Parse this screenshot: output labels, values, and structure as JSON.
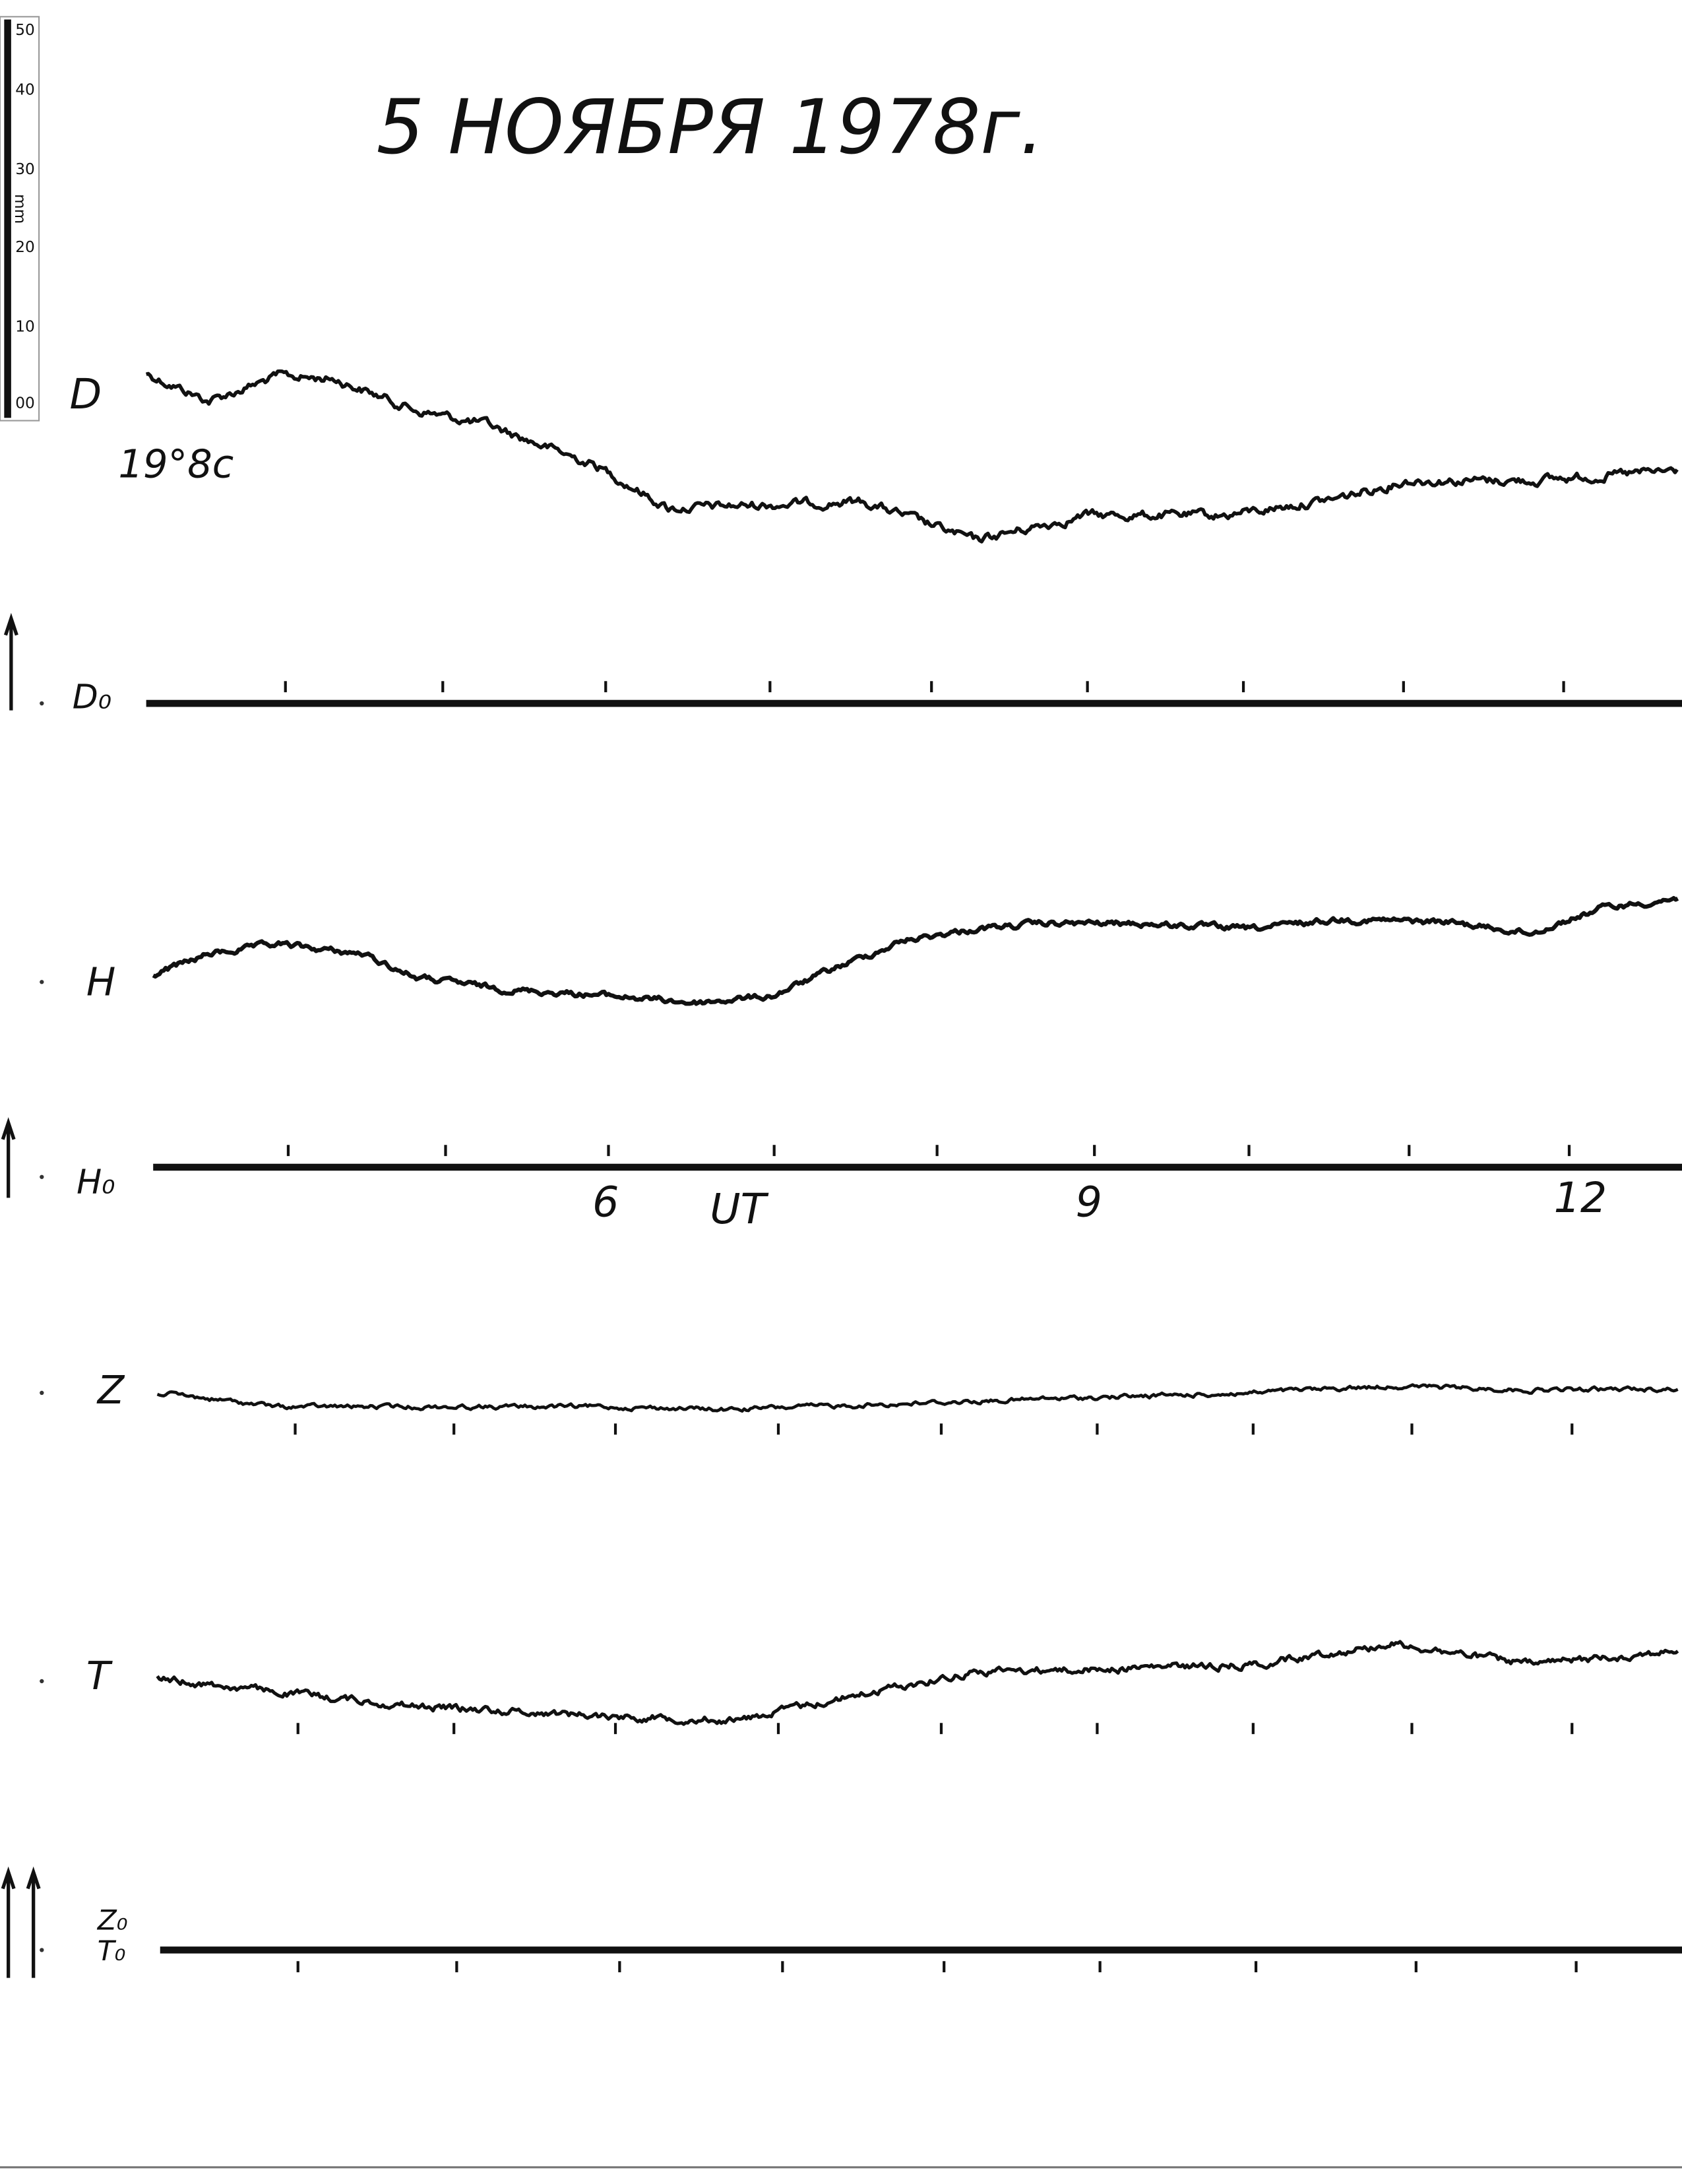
{
  "title": "5 НОЯБРЯ 1978г.",
  "scale": {
    "labels": [
      "50",
      "40",
      "30",
      "20",
      "10",
      "00"
    ],
    "unit": "mm"
  },
  "traces": [
    {
      "label": "D",
      "note": "19°8с"
    },
    {
      "label": "H"
    },
    {
      "label": "Z"
    },
    {
      "label": "T"
    }
  ],
  "baselines": [
    {
      "label": "D₀"
    },
    {
      "label": "H₀"
    },
    {
      "labels": [
        "Z₀",
        "T₀"
      ]
    }
  ],
  "time_axis": {
    "labels": [
      "6",
      "UT",
      "9",
      "12"
    ]
  }
}
